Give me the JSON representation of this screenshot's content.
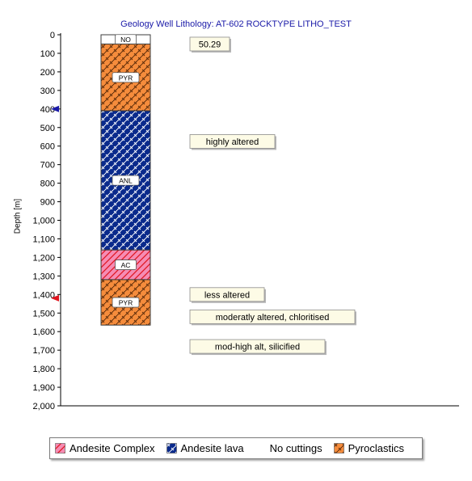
{
  "chart_data": {
    "type": "well-log-lithology",
    "title": "Geology Well Lithology:  AT-602 ROCKTYPE LITHO_TEST",
    "ylabel": "Depth [m]",
    "ylim": [
      0,
      2000
    ],
    "y_ticks": [
      "0",
      "100",
      "200",
      "300",
      "400",
      "500",
      "600",
      "700",
      "800",
      "900",
      "1,000",
      "1,100",
      "1,200",
      "1,300",
      "1,400",
      "1,500",
      "1,600",
      "1,700",
      "1,800",
      "1,900",
      "2,000"
    ],
    "intervals": [
      {
        "code": "NO",
        "lithology": "No cuttings",
        "top": 0,
        "bottom": 50,
        "color": "#ffffff",
        "pattern": "none"
      },
      {
        "code": "PYR",
        "lithology": "Pyroclastics",
        "top": 50,
        "bottom": 410,
        "color": "#f58c3c",
        "pattern": "check"
      },
      {
        "code": "ANL",
        "lithology": "Andesite lava",
        "top": 410,
        "bottom": 1160,
        "color": "#0a2a8c",
        "pattern": "check"
      },
      {
        "code": "AC",
        "lithology": "Andesite Complex",
        "top": 1160,
        "bottom": 1320,
        "color": "#f58cb4",
        "pattern": "hatch"
      },
      {
        "code": "PYR",
        "lithology": "Pyroclastics",
        "top": 1320,
        "bottom": 1565,
        "color": "#f58c3c",
        "pattern": "check"
      }
    ],
    "annotations": [
      {
        "text": "50.29",
        "depth": 50
      },
      {
        "text": "highly altered",
        "depth": 575
      },
      {
        "text": "less altered",
        "depth": 1400
      },
      {
        "text": "moderatly altered, chloritised",
        "depth": 1520
      },
      {
        "text": "mod-high alt, silicified",
        "depth": 1680
      }
    ],
    "markers": [
      {
        "depth": 400,
        "color": "#1a1aa8"
      },
      {
        "depth": 1420,
        "color": "#e0141e"
      }
    ],
    "legend": [
      {
        "label": "Andesite Complex",
        "color": "#f58cb4",
        "pattern": "hatch"
      },
      {
        "label": "Andesite lava",
        "color": "#0a2a8c",
        "pattern": "check"
      },
      {
        "label": "No cuttings",
        "color": "#ffffff",
        "pattern": "none"
      },
      {
        "label": "Pyroclastics",
        "color": "#f58c3c",
        "pattern": "check"
      }
    ]
  }
}
